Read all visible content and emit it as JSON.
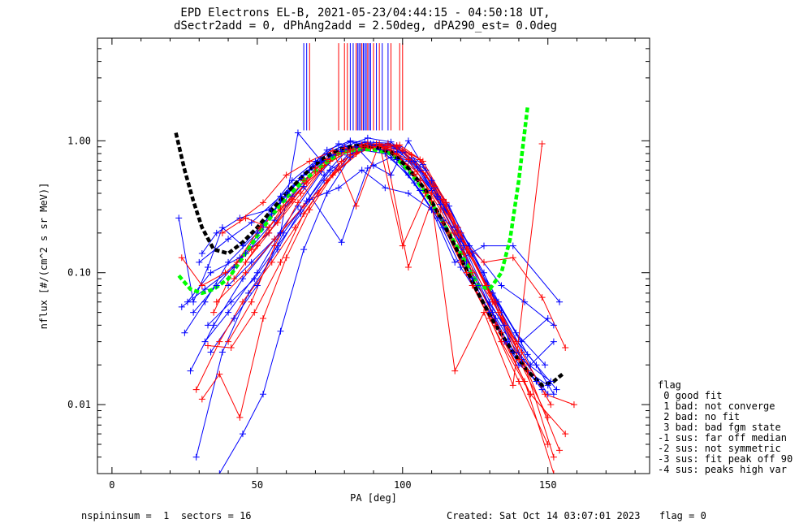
{
  "title_line1": "EPD Electrons EL-B, 2021-05-23/04:44:15 - 04:50:18 UT,",
  "title_line2": "dSectr2add = 0, dPhAng2add = 2.50deg, dPA290_est=    0.0deg",
  "legend": {
    "heading": "flag",
    "items": [
      " 0 good fit",
      " 1 bad: not converge",
      " 2 bad: no fit",
      " 3 bad: bad fgm state",
      "-1 sus: far off median",
      "-2 sus: not symmetric",
      "-3 sus: fit peak off 90",
      "-4 sus: peaks high var"
    ]
  },
  "footer": {
    "left": "nspininsum =  1  sectors = 16",
    "right": "Created: Sat Oct 14 03:07:01 2023",
    "flag": "flag = 0"
  },
  "chart_data": {
    "type": "line",
    "xlabel": "PA [deg]",
    "ylabel": "nflux [#/(cm^2 s sr MeV)]",
    "xlim": [
      -5,
      185
    ],
    "ylim": [
      0.003,
      6
    ],
    "yscale": "log",
    "xticks": [
      0,
      50,
      100,
      150
    ],
    "yticks": [
      {
        "v": 0.01,
        "label": "0.01"
      },
      {
        "v": 0.1,
        "label": "0.10"
      },
      {
        "v": 1.0,
        "label": "1.00"
      }
    ],
    "colors": {
      "blue": "#0000ff",
      "red": "#ff0000",
      "green": "#00ff00",
      "black": "#000000"
    },
    "series": [
      {
        "color": "blue",
        "x": [
          23,
          28,
          33,
          38,
          45,
          55,
          65,
          74,
          82,
          90,
          98,
          106,
          114,
          124,
          135,
          146,
          152
        ],
        "y": [
          0.26,
          0.06,
          0.11,
          0.22,
          0.16,
          0.28,
          0.52,
          0.8,
          0.98,
          0.92,
          0.72,
          0.42,
          0.22,
          0.09,
          0.04,
          0.02,
          0.012
        ]
      },
      {
        "color": "blue",
        "x": [
          25,
          32,
          40,
          50,
          58,
          66,
          74,
          82,
          90,
          98,
          106,
          114,
          124,
          135,
          148
        ],
        "y": [
          0.035,
          0.06,
          0.12,
          0.2,
          0.35,
          0.55,
          0.85,
          1.0,
          0.95,
          0.82,
          0.5,
          0.25,
          0.09,
          0.03,
          0.013
        ]
      },
      {
        "color": "blue",
        "x": [
          27,
          35,
          45,
          56,
          64,
          72,
          80,
          88,
          96,
          104,
          112,
          120,
          130,
          140,
          150
        ],
        "y": [
          0.018,
          0.04,
          0.09,
          0.18,
          0.32,
          0.58,
          0.9,
          1.05,
          0.98,
          0.7,
          0.38,
          0.18,
          0.06,
          0.025,
          0.012
        ]
      },
      {
        "color": "blue",
        "x": [
          29,
          38,
          47,
          57,
          65,
          73,
          81,
          89,
          97,
          105,
          113,
          121,
          131,
          141,
          151
        ],
        "y": [
          0.004,
          0.025,
          0.07,
          0.15,
          0.3,
          0.55,
          0.85,
          0.95,
          0.9,
          0.62,
          0.33,
          0.15,
          0.05,
          0.022,
          0.015
        ]
      },
      {
        "color": "blue",
        "x": [
          31,
          36,
          44,
          54,
          62,
          70,
          78,
          86,
          94,
          102,
          110,
          118,
          128,
          138,
          154
        ],
        "y": [
          0.14,
          0.2,
          0.26,
          0.3,
          0.5,
          0.7,
          0.95,
          0.85,
          0.8,
          0.55,
          0.3,
          0.12,
          0.16,
          0.16,
          0.06
        ]
      },
      {
        "color": "blue",
        "x": [
          33,
          41,
          49,
          57,
          65,
          73,
          81,
          89,
          97,
          105,
          113,
          121,
          131,
          141,
          150
        ],
        "y": [
          0.04,
          0.06,
          0.09,
          0.16,
          0.28,
          0.5,
          0.78,
          0.92,
          0.88,
          0.64,
          0.36,
          0.16,
          0.07,
          0.03,
          0.045
        ]
      },
      {
        "color": "blue",
        "x": [
          30,
          40,
          48,
          58,
          68,
          76,
          84,
          92,
          100,
          108,
          116,
          124,
          134,
          144,
          152
        ],
        "y": [
          0.12,
          0.18,
          0.24,
          0.38,
          0.6,
          0.78,
          0.9,
          0.86,
          0.82,
          0.6,
          0.32,
          0.14,
          0.05,
          0.02,
          0.03
        ]
      },
      {
        "color": "blue",
        "x": [
          28,
          36,
          46,
          56,
          66,
          79,
          88,
          96,
          104,
          112,
          120,
          130,
          140,
          150
        ],
        "y": [
          0.05,
          0.08,
          0.14,
          0.25,
          0.45,
          0.17,
          0.62,
          0.75,
          0.48,
          0.26,
          0.11,
          0.05,
          0.02,
          0.014
        ]
      },
      {
        "color": "blue",
        "x": [
          26,
          34,
          44,
          54,
          62,
          70,
          78,
          86,
          94,
          102,
          110,
          118,
          126,
          136,
          146
        ],
        "y": [
          0.06,
          0.1,
          0.13,
          0.2,
          0.38,
          0.62,
          0.85,
          0.9,
          0.85,
          0.7,
          0.42,
          0.2,
          0.08,
          0.03,
          0.015
        ]
      },
      {
        "color": "blue",
        "x": [
          34,
          42,
          50,
          59,
          67,
          75,
          83,
          91,
          99,
          107,
          115,
          123,
          133,
          143,
          153
        ],
        "y": [
          0.025,
          0.045,
          0.08,
          0.2,
          0.35,
          0.6,
          0.8,
          0.93,
          0.9,
          0.66,
          0.34,
          0.16,
          0.06,
          0.024,
          0.013
        ]
      },
      {
        "color": "blue",
        "x": [
          37,
          45,
          52,
          58,
          66,
          74,
          82,
          90,
          98,
          106,
          114,
          122,
          132
        ],
        "y": [
          0.003,
          0.006,
          0.012,
          0.036,
          0.15,
          0.4,
          0.75,
          0.95,
          0.92,
          0.6,
          0.3,
          0.12,
          0.045
        ]
      },
      {
        "color": "blue",
        "x": [
          40,
          48,
          58,
          68,
          78,
          86,
          94,
          102,
          110,
          120,
          134,
          142,
          152
        ],
        "y": [
          0.08,
          0.12,
          0.2,
          0.36,
          0.44,
          0.6,
          0.44,
          0.4,
          0.3,
          0.2,
          0.08,
          0.06,
          0.04
        ]
      },
      {
        "color": "blue",
        "x": [
          24,
          32,
          42,
          52,
          60,
          69,
          79,
          87,
          95,
          103,
          111,
          119,
          129,
          139,
          149
        ],
        "y": [
          0.055,
          0.075,
          0.11,
          0.22,
          0.4,
          0.64,
          0.83,
          0.98,
          0.96,
          0.74,
          0.44,
          0.22,
          0.08,
          0.035,
          0.02
        ]
      },
      {
        "color": "blue",
        "x": [
          32,
          40,
          50,
          58,
          64,
          72,
          78,
          84,
          90,
          96,
          102,
          110,
          118,
          128,
          138
        ],
        "y": [
          0.03,
          0.05,
          0.1,
          0.2,
          1.15,
          0.7,
          0.6,
          0.9,
          0.65,
          0.55,
          1.0,
          0.5,
          0.22,
          0.1,
          0.025
        ]
      },
      {
        "color": "red",
        "x": [
          24,
          31,
          39,
          48,
          57,
          65,
          73,
          81,
          89,
          97,
          105,
          113,
          121,
          131,
          141,
          151
        ],
        "y": [
          0.13,
          0.08,
          0.1,
          0.15,
          0.24,
          0.4,
          0.65,
          0.82,
          0.88,
          0.8,
          0.58,
          0.3,
          0.14,
          0.06,
          0.025,
          0.01
        ]
      },
      {
        "color": "red",
        "x": [
          29,
          37,
          45,
          55,
          63,
          71,
          79,
          87,
          95,
          103,
          111,
          119,
          129,
          139,
          149,
          159
        ],
        "y": [
          0.013,
          0.03,
          0.06,
          0.12,
          0.22,
          0.4,
          0.7,
          0.9,
          0.95,
          0.78,
          0.45,
          0.22,
          0.08,
          0.03,
          0.012,
          0.01
        ]
      },
      {
        "color": "red",
        "x": [
          31,
          37,
          44,
          52,
          60,
          68,
          76,
          84,
          92,
          100,
          108,
          116,
          124,
          134,
          144,
          156
        ],
        "y": [
          0.011,
          0.017,
          0.008,
          0.045,
          0.13,
          0.3,
          0.55,
          0.8,
          0.92,
          0.85,
          0.55,
          0.28,
          0.1,
          0.035,
          0.012,
          0.006
        ]
      },
      {
        "color": "red",
        "x": [
          33,
          41,
          49,
          58,
          66,
          74,
          82,
          90,
          98,
          106,
          114,
          122,
          132,
          142,
          152
        ],
        "y": [
          0.028,
          0.027,
          0.05,
          0.12,
          0.28,
          0.5,
          0.78,
          0.9,
          0.92,
          0.72,
          0.36,
          0.15,
          0.06,
          0.02,
          0.004
        ]
      },
      {
        "color": "red",
        "x": [
          35,
          43,
          51,
          59,
          67,
          75,
          83,
          91,
          99,
          107,
          115,
          123,
          133,
          143,
          154
        ],
        "y": [
          0.05,
          0.12,
          0.22,
          0.32,
          0.48,
          0.7,
          0.86,
          0.95,
          0.93,
          0.7,
          0.34,
          0.14,
          0.05,
          0.018,
          0.0045
        ]
      },
      {
        "color": "red",
        "x": [
          38,
          46,
          54,
          62,
          70,
          78,
          86,
          94,
          102,
          110,
          118,
          128,
          138,
          148
        ],
        "y": [
          0.2,
          0.26,
          0.22,
          0.36,
          0.58,
          0.8,
          0.9,
          0.86,
          0.11,
          0.35,
          0.018,
          0.05,
          0.014,
          0.95
        ]
      },
      {
        "color": "red",
        "x": [
          40,
          48,
          56,
          64,
          72,
          80,
          88,
          96,
          104,
          112,
          120,
          130,
          140,
          150
        ],
        "y": [
          0.03,
          0.06,
          0.16,
          0.34,
          0.6,
          0.88,
          0.96,
          0.86,
          0.56,
          0.28,
          0.12,
          0.045,
          0.015,
          0.005
        ]
      },
      {
        "color": "red",
        "x": [
          42,
          50,
          58,
          66,
          74,
          82,
          90,
          98,
          106,
          114,
          122,
          132,
          142,
          152
        ],
        "y": [
          0.09,
          0.16,
          0.3,
          0.5,
          0.72,
          0.85,
          0.9,
          0.8,
          0.5,
          0.24,
          0.1,
          0.04,
          0.015,
          0.003
        ]
      },
      {
        "color": "red",
        "x": [
          44,
          52,
          60,
          68,
          76,
          84,
          92,
          100,
          108,
          116,
          124,
          134,
          144
        ],
        "y": [
          0.25,
          0.34,
          0.55,
          0.7,
          0.84,
          0.32,
          0.95,
          0.16,
          0.4,
          0.2,
          0.08,
          0.03,
          0.012
        ]
      },
      {
        "color": "red",
        "x": [
          36,
          46,
          56,
          66,
          78,
          88,
          98,
          108,
          118,
          128,
          138,
          148,
          156
        ],
        "y": [
          0.06,
          0.1,
          0.18,
          0.32,
          0.6,
          0.92,
          0.9,
          0.55,
          0.2,
          0.12,
          0.13,
          0.065,
          0.027
        ]
      },
      {
        "color": "red",
        "x": [
          46,
          54,
          62,
          70,
          78,
          86,
          94,
          102,
          110,
          120,
          130,
          140,
          150
        ],
        "y": [
          0.12,
          0.2,
          0.35,
          0.62,
          0.8,
          0.93,
          0.88,
          0.72,
          0.4,
          0.2,
          0.07,
          0.022,
          0.008
        ]
      },
      {
        "color": "green",
        "x": [
          23,
          27,
          31,
          35,
          40,
          45,
          50,
          55,
          60,
          66,
          72,
          78,
          84,
          90,
          96,
          102,
          108,
          114,
          120,
          126,
          130,
          134,
          137,
          140,
          143
        ],
        "y": [
          0.095,
          0.075,
          0.07,
          0.075,
          0.09,
          0.13,
          0.19,
          0.27,
          0.37,
          0.5,
          0.64,
          0.8,
          0.86,
          0.86,
          0.8,
          0.6,
          0.4,
          0.24,
          0.14,
          0.08,
          0.075,
          0.1,
          0.18,
          0.5,
          1.8
        ]
      },
      {
        "color": "black",
        "x": [
          22,
          25,
          28,
          31,
          35,
          40,
          45,
          50,
          55,
          60,
          66,
          72,
          78,
          84,
          90,
          96,
          102,
          108,
          114,
          120,
          126,
          132,
          138,
          143,
          148,
          152,
          155
        ],
        "y": [
          1.15,
          0.6,
          0.35,
          0.22,
          0.15,
          0.14,
          0.17,
          0.22,
          0.3,
          0.4,
          0.55,
          0.72,
          0.86,
          0.92,
          0.9,
          0.82,
          0.62,
          0.42,
          0.24,
          0.13,
          0.07,
          0.04,
          0.025,
          0.018,
          0.014,
          0.015,
          0.017
        ]
      }
    ],
    "vlines": [
      {
        "x": 66,
        "color": "blue"
      },
      {
        "x": 67,
        "color": "blue"
      },
      {
        "x": 68,
        "color": "red"
      },
      {
        "x": 78,
        "color": "red"
      },
      {
        "x": 80,
        "color": "red"
      },
      {
        "x": 81,
        "color": "red"
      },
      {
        "x": 82,
        "color": "blue"
      },
      {
        "x": 83,
        "color": "blue"
      },
      {
        "x": 84,
        "color": "red"
      },
      {
        "x": 84.5,
        "color": "blue"
      },
      {
        "x": 85,
        "color": "blue"
      },
      {
        "x": 85.5,
        "color": "blue"
      },
      {
        "x": 86,
        "color": "red"
      },
      {
        "x": 86.5,
        "color": "blue"
      },
      {
        "x": 87,
        "color": "blue"
      },
      {
        "x": 87.5,
        "color": "blue"
      },
      {
        "x": 88,
        "color": "red"
      },
      {
        "x": 88.5,
        "color": "blue"
      },
      {
        "x": 89,
        "color": "blue"
      },
      {
        "x": 90,
        "color": "red"
      },
      {
        "x": 91,
        "color": "blue"
      },
      {
        "x": 92,
        "color": "red"
      },
      {
        "x": 93,
        "color": "blue"
      },
      {
        "x": 95,
        "color": "blue"
      },
      {
        "x": 96,
        "color": "red"
      },
      {
        "x": 99,
        "color": "red"
      },
      {
        "x": 100,
        "color": "red"
      }
    ],
    "vline_top": 5.5,
    "vline_bottom": 1.2
  }
}
